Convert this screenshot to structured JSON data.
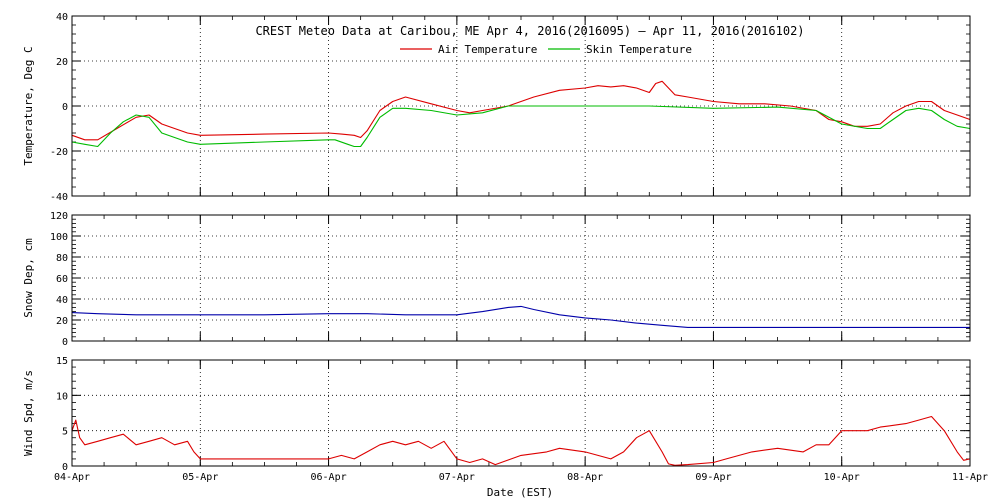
{
  "title": "CREST Meteo Data at Caribou, ME   Apr  4, 2016(2016095) — Apr 11, 2016(2016102)",
  "xlabel": "Date (EST)",
  "colors": {
    "air": "#dd0000",
    "skin": "#00bb00",
    "snow": "#0000aa",
    "wind": "#dd0000",
    "axis": "#000000",
    "grid": "#000000"
  },
  "chart_data": [
    {
      "type": "line",
      "name": "temperature",
      "ylabel": "Temperature, Deg C",
      "ylim": [
        -40,
        40
      ],
      "yticks": [
        -40,
        -20,
        0,
        20,
        40
      ],
      "xlim": [
        0,
        7
      ],
      "xticks": [
        0,
        1,
        2,
        3,
        4,
        5,
        6,
        7
      ],
      "xtick_labels": [
        "04-Apr",
        "05-Apr",
        "06-Apr",
        "07-Apr",
        "08-Apr",
        "09-Apr",
        "10-Apr",
        "11-Apr"
      ],
      "grid": true,
      "legend": "top-center",
      "series": [
        {
          "name": "Air Temperature",
          "color": "#dd0000",
          "x": [
            0,
            0.1,
            0.2,
            0.35,
            0.5,
            0.6,
            0.7,
            0.8,
            0.9,
            1.0,
            1.5,
            2.0,
            2.1,
            2.2,
            2.25,
            2.3,
            2.4,
            2.5,
            2.6,
            2.8,
            3.0,
            3.1,
            3.2,
            3.4,
            3.6,
            3.8,
            4.0,
            4.1,
            4.2,
            4.3,
            4.4,
            4.5,
            4.55,
            4.6,
            4.7,
            4.8,
            5.0,
            5.2,
            5.4,
            5.6,
            5.8,
            5.9,
            6.0,
            6.1,
            6.2,
            6.3,
            6.4,
            6.5,
            6.6,
            6.7,
            6.8,
            6.9,
            7.0
          ],
          "y": [
            -13,
            -15,
            -15,
            -10,
            -5,
            -4,
            -8,
            -10,
            -12,
            -13,
            -12.5,
            -12,
            -12.5,
            -13,
            -14,
            -11,
            -2,
            2,
            4,
            1,
            -2,
            -3,
            -2,
            0,
            4,
            7,
            8,
            9,
            8.5,
            9,
            8,
            6,
            10,
            11,
            5,
            4,
            2,
            1,
            1,
            0,
            -2,
            -6,
            -7,
            -9,
            -9,
            -8,
            -3,
            0,
            2,
            2,
            -2,
            -4,
            -6
          ]
        },
        {
          "name": "Skin Temperature",
          "color": "#00bb00",
          "x": [
            0,
            0.1,
            0.2,
            0.3,
            0.4,
            0.5,
            0.6,
            0.7,
            0.8,
            0.9,
            1.0,
            1.5,
            2.0,
            2.05,
            2.15,
            2.2,
            2.25,
            2.3,
            2.4,
            2.5,
            2.6,
            2.8,
            3.0,
            3.2,
            3.4,
            3.6,
            4.0,
            4.5,
            5.0,
            5.5,
            5.8,
            6.0,
            6.2,
            6.3,
            6.4,
            6.5,
            6.6,
            6.7,
            6.8,
            6.9,
            7.0
          ],
          "y": [
            -16,
            -17,
            -18,
            -12,
            -7,
            -4,
            -5,
            -12,
            -14,
            -16,
            -17,
            -16,
            -15,
            -15,
            -17,
            -18,
            -18,
            -14,
            -5,
            -1,
            -1,
            -2,
            -4,
            -3,
            0,
            0,
            0,
            0,
            -1,
            -0.5,
            -2,
            -8,
            -10,
            -10,
            -6,
            -2,
            -1,
            -2,
            -6,
            -9,
            -10
          ]
        }
      ]
    },
    {
      "type": "line",
      "name": "snow",
      "ylabel": "Snow Dep, cm",
      "ylim": [
        0,
        120
      ],
      "yticks": [
        0,
        20,
        40,
        60,
        80,
        100,
        120
      ],
      "xlim": [
        0,
        7
      ],
      "xticks": [
        0,
        1,
        2,
        3,
        4,
        5,
        6,
        7
      ],
      "xtick_labels": [
        "04-Apr",
        "05-Apr",
        "06-Apr",
        "07-Apr",
        "08-Apr",
        "09-Apr",
        "10-Apr",
        "11-Apr"
      ],
      "grid": true,
      "series": [
        {
          "color": "#0000aa",
          "x": [
            0,
            0.2,
            0.5,
            1.0,
            1.5,
            2.0,
            2.3,
            2.6,
            3.0,
            3.2,
            3.4,
            3.5,
            3.6,
            3.8,
            4.0,
            4.2,
            4.4,
            4.6,
            4.8,
            5.0,
            5.5,
            6.0,
            6.5,
            7.0
          ],
          "y": [
            27,
            26,
            25,
            25,
            25,
            26,
            26,
            25,
            25,
            28,
            32,
            33,
            30,
            25,
            22,
            20,
            17,
            15,
            13,
            13,
            13,
            13,
            13,
            13
          ]
        }
      ]
    },
    {
      "type": "line",
      "name": "wind",
      "ylabel": "Wind Spd, m/s",
      "ylim": [
        0,
        15
      ],
      "yticks": [
        0,
        5,
        10,
        15
      ],
      "xlim": [
        0,
        7
      ],
      "xticks": [
        0,
        1,
        2,
        3,
        4,
        5,
        6,
        7
      ],
      "xtick_labels": [
        "04-Apr",
        "05-Apr",
        "06-Apr",
        "07-Apr",
        "08-Apr",
        "09-Apr",
        "10-Apr",
        "11-Apr"
      ],
      "grid": true,
      "series": [
        {
          "color": "#dd0000",
          "x": [
            0,
            0.03,
            0.06,
            0.1,
            0.2,
            0.3,
            0.4,
            0.5,
            0.6,
            0.7,
            0.8,
            0.9,
            0.95,
            1.0,
            1.5,
            2.0,
            2.1,
            2.2,
            2.3,
            2.4,
            2.5,
            2.6,
            2.7,
            2.8,
            2.9,
            3.0,
            3.1,
            3.2,
            3.3,
            3.5,
            3.7,
            3.8,
            4.0,
            4.2,
            4.3,
            4.4,
            4.5,
            4.6,
            4.65,
            4.7,
            4.8,
            5.0,
            5.1,
            5.3,
            5.5,
            5.7,
            5.8,
            5.9,
            6.0,
            6.2,
            6.3,
            6.5,
            6.6,
            6.7,
            6.8,
            6.9,
            6.95,
            7.0
          ],
          "y": [
            5,
            6.5,
            4,
            3,
            3.5,
            4,
            4.5,
            3,
            3.5,
            4,
            3,
            3.5,
            2,
            1,
            1,
            1,
            1.5,
            1,
            2,
            3,
            3.5,
            3,
            3.5,
            2.5,
            3.5,
            1,
            0.5,
            1,
            0.2,
            1.5,
            2,
            2.5,
            2,
            1,
            2,
            4,
            5,
            2,
            0.3,
            0.1,
            0.2,
            0.5,
            1,
            2,
            2.5,
            2,
            3,
            3,
            5,
            5,
            5.5,
            6,
            6.5,
            7,
            5,
            2,
            0.8,
            1
          ]
        }
      ]
    }
  ]
}
